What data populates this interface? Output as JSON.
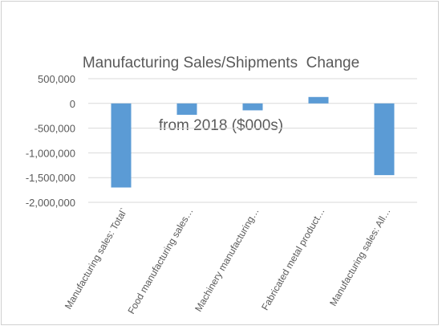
{
  "chart_data": {
    "type": "bar",
    "title_line1": "Manufacturing Sales/Shipments  Change",
    "title_line2": "from 2018 ($000s)",
    "categories": [
      "Manufacturing sales: Total`",
      "Food manufacturing sales…",
      "Machinery manufacturing…",
      "Fabricated metal product…",
      "Manufacturing sales: All…"
    ],
    "values": [
      -1700000,
      -230000,
      -140000,
      130000,
      -1450000
    ],
    "ylim": [
      -2000000,
      500000
    ],
    "yticks": [
      500000,
      0,
      -500000,
      -1000000,
      -1500000,
      -2000000
    ],
    "ytick_labels": [
      "500,000",
      "0",
      "-500,000",
      "-1,000,000",
      "-1,500,000",
      "-2,000,000"
    ],
    "grid": true,
    "legend": "none",
    "colors": {
      "bar": "#5b9bd5",
      "grid": "#d9d9d9",
      "text": "#595959"
    }
  }
}
